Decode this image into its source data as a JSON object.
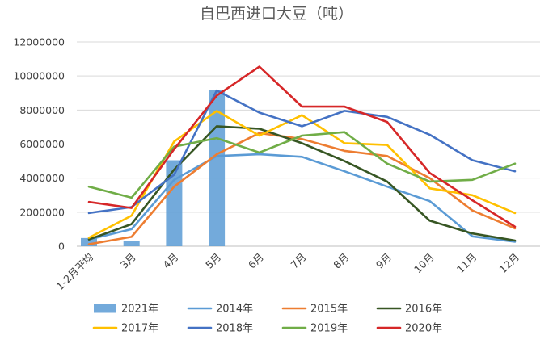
{
  "chart_data": {
    "type": "bar+line",
    "title": "自巴西进口大豆（吨）",
    "categories": [
      "1-2月平均",
      "3月",
      "4月",
      "5月",
      "6月",
      "7月",
      "8月",
      "9月",
      "10月",
      "11月",
      "12月"
    ],
    "ylim": [
      0,
      12000000
    ],
    "yticks": [
      0,
      2000000,
      4000000,
      6000000,
      8000000,
      10000000,
      12000000
    ],
    "ytick_labels": [
      "0",
      "2000000",
      "4000000",
      "6000000",
      "8000000",
      "10000000",
      "12000000"
    ],
    "grid": true,
    "legend_position": "bottom",
    "bar_series": {
      "name": "2021年",
      "color": "#5b9bd5",
      "values": [
        480000,
        330000,
        5050000,
        9200000,
        null,
        null,
        null,
        null,
        null,
        null,
        null
      ]
    },
    "series": [
      {
        "name": "2014年",
        "color": "#5b9bd5",
        "values": [
          400000,
          1000000,
          3900000,
          5300000,
          5400000,
          5250000,
          4400000,
          3500000,
          2650000,
          580000,
          260000
        ]
      },
      {
        "name": "2015年",
        "color": "#ed7d31",
        "values": [
          120000,
          550000,
          3500000,
          5400000,
          6650000,
          6300000,
          5600000,
          5300000,
          4000000,
          2100000,
          1050000
        ]
      },
      {
        "name": "2016年",
        "color": "#375623",
        "values": [
          400000,
          1300000,
          4500000,
          7050000,
          6900000,
          6050000,
          5000000,
          3800000,
          1500000,
          750000,
          330000
        ]
      },
      {
        "name": "2017年",
        "color": "#ffc000",
        "values": [
          500000,
          1800000,
          6150000,
          7950000,
          6500000,
          7700000,
          6050000,
          5950000,
          3400000,
          3000000,
          1950000
        ]
      },
      {
        "name": "2018年",
        "color": "#4472c4",
        "values": [
          1950000,
          2300000,
          4200000,
          9150000,
          7850000,
          7050000,
          7950000,
          7600000,
          6550000,
          5050000,
          4400000
        ]
      },
      {
        "name": "2019年",
        "color": "#70ad47",
        "values": [
          3500000,
          2850000,
          5850000,
          6350000,
          5500000,
          6500000,
          6700000,
          4850000,
          3800000,
          3900000,
          4850000
        ]
      },
      {
        "name": "2020年",
        "color": "#d62728",
        "values": [
          2600000,
          2250000,
          5700000,
          8850000,
          10550000,
          8200000,
          8200000,
          7300000,
          4300000,
          2700000,
          1150000
        ]
      }
    ]
  }
}
